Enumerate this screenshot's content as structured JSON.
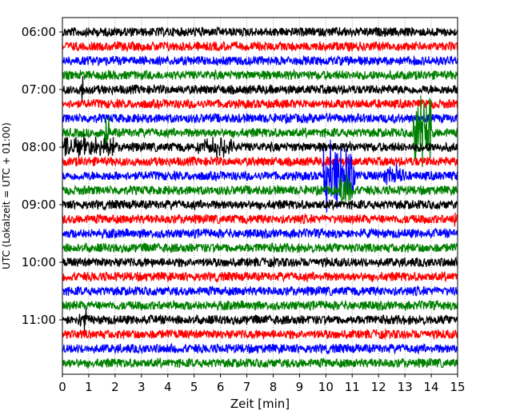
{
  "chart_data": {
    "type": "line",
    "subtype": "helicorder",
    "title": "",
    "xlabel": "Zeit  [min]",
    "ylabel": "UTC (Lokalzeit = UTC + 01:00)",
    "xlim": [
      0,
      15
    ],
    "x_ticks": [
      "0",
      "1",
      "2",
      "3",
      "4",
      "5",
      "6",
      "7",
      "8",
      "9",
      "10",
      "11",
      "12",
      "13",
      "14",
      "15"
    ],
    "y_ticks": [
      "06:00",
      "07:00",
      "08:00",
      "09:00",
      "10:00",
      "11:00"
    ],
    "minutes_per_line": 15,
    "start_time": "06:00",
    "line_count": 24,
    "color_cycle": [
      "#000000",
      "#ff0000",
      "#0000ff",
      "#008000"
    ],
    "grid": "vertical dotted at each minute",
    "events": [
      {
        "line": 4,
        "t_start": 0.7,
        "t_end": 0.8,
        "amplitude": 3
      },
      {
        "line": 7,
        "t_start": 1.6,
        "t_end": 1.8,
        "amplitude": 4
      },
      {
        "line": 7,
        "t_start": 13.3,
        "t_end": 14.0,
        "amplitude": 7
      },
      {
        "line": 8,
        "t_start": 0.0,
        "t_end": 2.0,
        "amplitude": 2
      },
      {
        "line": 8,
        "t_start": 5.0,
        "t_end": 6.5,
        "amplitude": 1.8
      },
      {
        "line": 10,
        "t_start": 9.9,
        "t_end": 11.1,
        "amplitude": 6
      },
      {
        "line": 10,
        "t_start": 12.2,
        "t_end": 13.0,
        "amplitude": 2
      },
      {
        "line": 11,
        "t_start": 10.5,
        "t_end": 11.0,
        "amplitude": 3
      },
      {
        "line": 13,
        "t_start": 14.8,
        "t_end": 15.0,
        "amplitude": 2
      },
      {
        "line": 20,
        "t_start": 0.6,
        "t_end": 0.9,
        "amplitude": 2
      }
    ]
  }
}
